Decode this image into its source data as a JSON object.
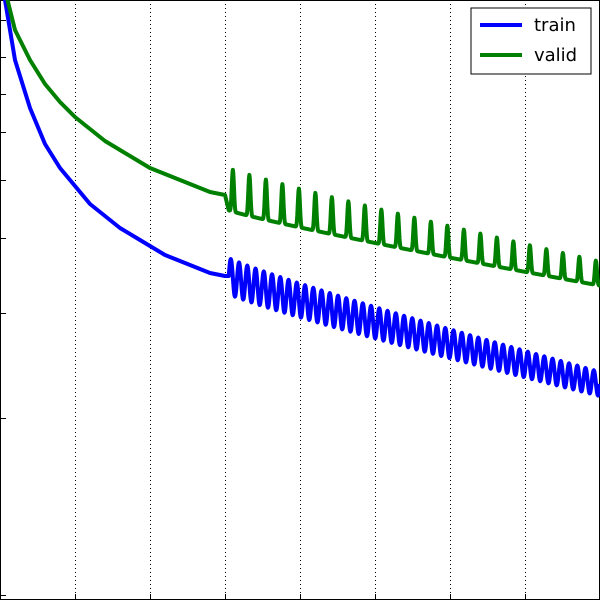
{
  "chart_data": {
    "type": "line",
    "title": "",
    "xlabel": "",
    "ylabel": "",
    "xlim": [
      0,
      80
    ],
    "ylim": [
      0,
      1
    ],
    "yscale": "log-like",
    "grid": "vertical-dotted",
    "x_gridlines": [
      10,
      20,
      30,
      40,
      50,
      60,
      70
    ],
    "legend": {
      "placement": "top-right",
      "entries": [
        {
          "label": "train",
          "color": "#0000ff"
        },
        {
          "label": "valid",
          "color": "#008000"
        }
      ]
    },
    "series": [
      {
        "name": "train",
        "color": "#0000ff",
        "smooth": [
          [
            0,
            1.05
          ],
          [
            2,
            0.9
          ],
          [
            4,
            0.82
          ],
          [
            6,
            0.76
          ],
          [
            8,
            0.72
          ],
          [
            10,
            0.69
          ],
          [
            12,
            0.66
          ],
          [
            14,
            0.64
          ],
          [
            16,
            0.62
          ],
          [
            18,
            0.605
          ],
          [
            20,
            0.59
          ],
          [
            22,
            0.575
          ],
          [
            24,
            0.565
          ],
          [
            26,
            0.555
          ],
          [
            28,
            0.545
          ],
          [
            30,
            0.54
          ]
        ],
        "oscillating": {
          "start": 30.5,
          "end": 80,
          "base_start": 0.54,
          "base_end": 0.36,
          "amplitude_start": 0.03,
          "amplitude_end": 0.02,
          "period": 1.1
        }
      },
      {
        "name": "valid",
        "color": "#008000",
        "smooth": [
          [
            0,
            1.05
          ],
          [
            2,
            0.95
          ],
          [
            4,
            0.9
          ],
          [
            6,
            0.86
          ],
          [
            8,
            0.83
          ],
          [
            10,
            0.805
          ],
          [
            12,
            0.785
          ],
          [
            14,
            0.765
          ],
          [
            16,
            0.75
          ],
          [
            18,
            0.735
          ],
          [
            20,
            0.72
          ],
          [
            22,
            0.71
          ],
          [
            24,
            0.7
          ],
          [
            26,
            0.69
          ],
          [
            28,
            0.68
          ],
          [
            30,
            0.675
          ]
        ],
        "oscillating": {
          "start": 30.5,
          "end": 80,
          "base_start": 0.66,
          "base_end": 0.53,
          "amplitude_start": 0.07,
          "amplitude_end": 0.04,
          "period": 2.2
        }
      }
    ]
  }
}
